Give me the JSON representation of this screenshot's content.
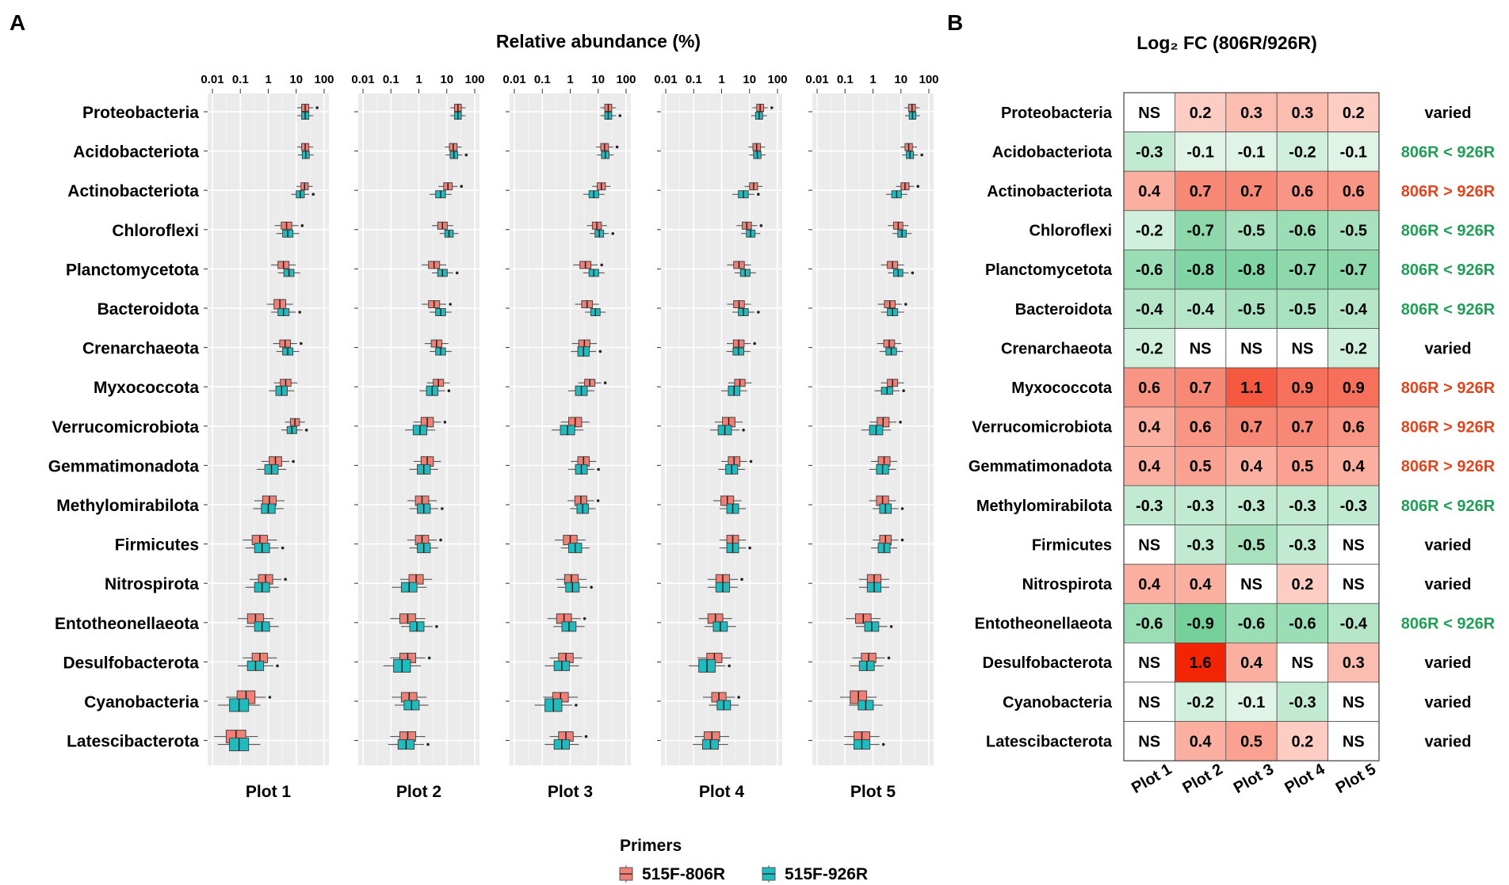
{
  "chart_data": [
    {
      "type": "boxplot",
      "panel_label": "A",
      "title": "Relative abundance (%)",
      "xscale": "log10",
      "xlim": [
        0.01,
        100
      ],
      "xticks": [
        0.01,
        0.1,
        1,
        10,
        100
      ],
      "xtick_labels": [
        "0.01",
        "0.1",
        "1",
        "10",
        "100"
      ],
      "plots": [
        "Plot 1",
        "Plot 2",
        "Plot 3",
        "Plot 4",
        "Plot 5"
      ],
      "taxa": [
        "Proteobacteria",
        "Acidobacteriota",
        "Actinobacteriota",
        "Chloroflexi",
        "Planctomycetota",
        "Bacteroidota",
        "Crenarchaeota",
        "Myxococcota",
        "Verrucomicrobiota",
        "Gemmatimonadota",
        "Methylomirabilota",
        "Firmicutes",
        "Nitrospirota",
        "Entotheonellaeota",
        "Desulfobacterota",
        "Cyanobacteria",
        "Latescibacterota"
      ],
      "legend": {
        "title": "Primers",
        "entries": [
          {
            "name": "515F-806R",
            "color": "#f07f76"
          },
          {
            "name": "515F-926R",
            "color": "#1fbcbf"
          }
        ]
      },
      "medians_806R": [
        [
          21,
          21,
          20,
          4.5,
          3.5,
          2.6,
          4,
          4.2,
          9,
          1.8,
          1.1,
          0.5,
          0.8,
          0.35,
          0.5,
          0.16,
          0.07
        ],
        [
          25,
          17,
          11,
          7,
          3.5,
          3.5,
          4.3,
          5,
          2,
          2,
          1.3,
          1.3,
          0.8,
          0.4,
          0.4,
          0.45,
          0.4
        ],
        [
          23,
          17,
          13,
          9,
          3.5,
          4,
          3.2,
          5,
          1.5,
          3,
          2.4,
          1,
          1.1,
          0.6,
          0.7,
          0.45,
          0.7
        ],
        [
          24,
          18,
          14,
          8,
          4.2,
          4.2,
          4.1,
          4.5,
          1.8,
          2.8,
          1.6,
          2.5,
          1.1,
          0.6,
          0.55,
          0.8,
          0.45
        ],
        [
          25,
          19,
          14,
          8,
          5,
          4,
          3.8,
          5,
          2.3,
          2.5,
          2.2,
          2.8,
          1.1,
          0.45,
          0.7,
          0.3,
          0.4
        ]
      ],
      "medians_926R": [
        [
          21,
          22,
          14,
          5,
          5.5,
          3.5,
          5,
          3,
          7,
          1.3,
          1,
          0.6,
          0.6,
          0.6,
          0.35,
          0.09,
          0.09
        ],
        [
          25,
          18,
          6,
          12,
          7,
          6,
          6,
          3,
          1.1,
          1.5,
          1.5,
          1.5,
          0.45,
          0.85,
          0.25,
          0.55,
          0.35
        ],
        [
          23,
          18,
          7,
          11,
          7,
          8,
          3,
          2.5,
          0.8,
          2.5,
          2.8,
          1.5,
          1.2,
          0.9,
          0.5,
          0.25,
          0.5
        ],
        [
          22,
          19,
          6,
          11,
          7,
          6,
          4,
          2.8,
          1.3,
          2.3,
          2.5,
          2.5,
          1.1,
          0.9,
          0.3,
          1.2,
          0.4
        ],
        [
          26,
          21,
          7,
          11,
          8,
          5,
          4.5,
          3.2,
          1.3,
          2.2,
          2.8,
          2.5,
          1.1,
          0.9,
          0.6,
          0.55,
          0.4
        ]
      ]
    },
    {
      "type": "heatmap",
      "panel_label": "B",
      "title": "Log₂ FC (806R/926R)",
      "columns": [
        "Plot 1",
        "Plot 2",
        "Plot 3",
        "Plot 4",
        "Plot 5"
      ],
      "rows": [
        {
          "taxon": "Proteobacteria",
          "cells": [
            "NS",
            "0.2",
            "0.3",
            "0.3",
            "0.2"
          ],
          "status": "varied"
        },
        {
          "taxon": "Acidobacteriota",
          "cells": [
            "-0.3",
            "-0.1",
            "-0.1",
            "-0.2",
            "-0.1"
          ],
          "status": "806R < 926R"
        },
        {
          "taxon": "Actinobacteriota",
          "cells": [
            "0.4",
            "0.7",
            "0.7",
            "0.6",
            "0.6"
          ],
          "status": "806R > 926R"
        },
        {
          "taxon": "Chloroflexi",
          "cells": [
            "-0.2",
            "-0.7",
            "-0.5",
            "-0.6",
            "-0.5"
          ],
          "status": "806R < 926R"
        },
        {
          "taxon": "Planctomycetota",
          "cells": [
            "-0.6",
            "-0.8",
            "-0.8",
            "-0.7",
            "-0.7"
          ],
          "status": "806R < 926R"
        },
        {
          "taxon": "Bacteroidota",
          "cells": [
            "-0.4",
            "-0.4",
            "-0.5",
            "-0.5",
            "-0.4"
          ],
          "status": "806R < 926R"
        },
        {
          "taxon": "Crenarchaeota",
          "cells": [
            "-0.2",
            "NS",
            "NS",
            "NS",
            "-0.2"
          ],
          "status": "varied"
        },
        {
          "taxon": "Myxococcota",
          "cells": [
            "0.6",
            "0.7",
            "1.1",
            "0.9",
            "0.9"
          ],
          "status": "806R > 926R"
        },
        {
          "taxon": "Verrucomicrobiota",
          "cells": [
            "0.4",
            "0.6",
            "0.7",
            "0.7",
            "0.6"
          ],
          "status": "806R > 926R"
        },
        {
          "taxon": "Gemmatimonadota",
          "cells": [
            "0.4",
            "0.5",
            "0.4",
            "0.5",
            "0.4"
          ],
          "status": "806R > 926R"
        },
        {
          "taxon": "Methylomirabilota",
          "cells": [
            "-0.3",
            "-0.3",
            "-0.3",
            "-0.3",
            "-0.3"
          ],
          "status": "806R < 926R"
        },
        {
          "taxon": "Firmicutes",
          "cells": [
            "NS",
            "-0.3",
            "-0.5",
            "-0.3",
            "NS"
          ],
          "status": "varied"
        },
        {
          "taxon": "Nitrospirota",
          "cells": [
            "0.4",
            "0.4",
            "NS",
            "0.2",
            "NS"
          ],
          "status": "varied"
        },
        {
          "taxon": "Entotheonellaeota",
          "cells": [
            "-0.6",
            "-0.9",
            "-0.6",
            "-0.6",
            "-0.4"
          ],
          "status": "806R < 926R"
        },
        {
          "taxon": "Desulfobacterota",
          "cells": [
            "NS",
            "1.6",
            "0.4",
            "NS",
            "0.3"
          ],
          "status": "varied"
        },
        {
          "taxon": "Cyanobacteria",
          "cells": [
            "NS",
            "-0.2",
            "-0.1",
            "-0.3",
            "NS"
          ],
          "status": "varied"
        },
        {
          "taxon": "Latescibacterota",
          "cells": [
            "NS",
            "0.4",
            "0.5",
            "0.2",
            "NS"
          ],
          "status": "varied"
        }
      ],
      "status_colors": {
        "up": "#e0451e",
        "down": "#1f9e55",
        "varied": "#000000"
      }
    }
  ]
}
